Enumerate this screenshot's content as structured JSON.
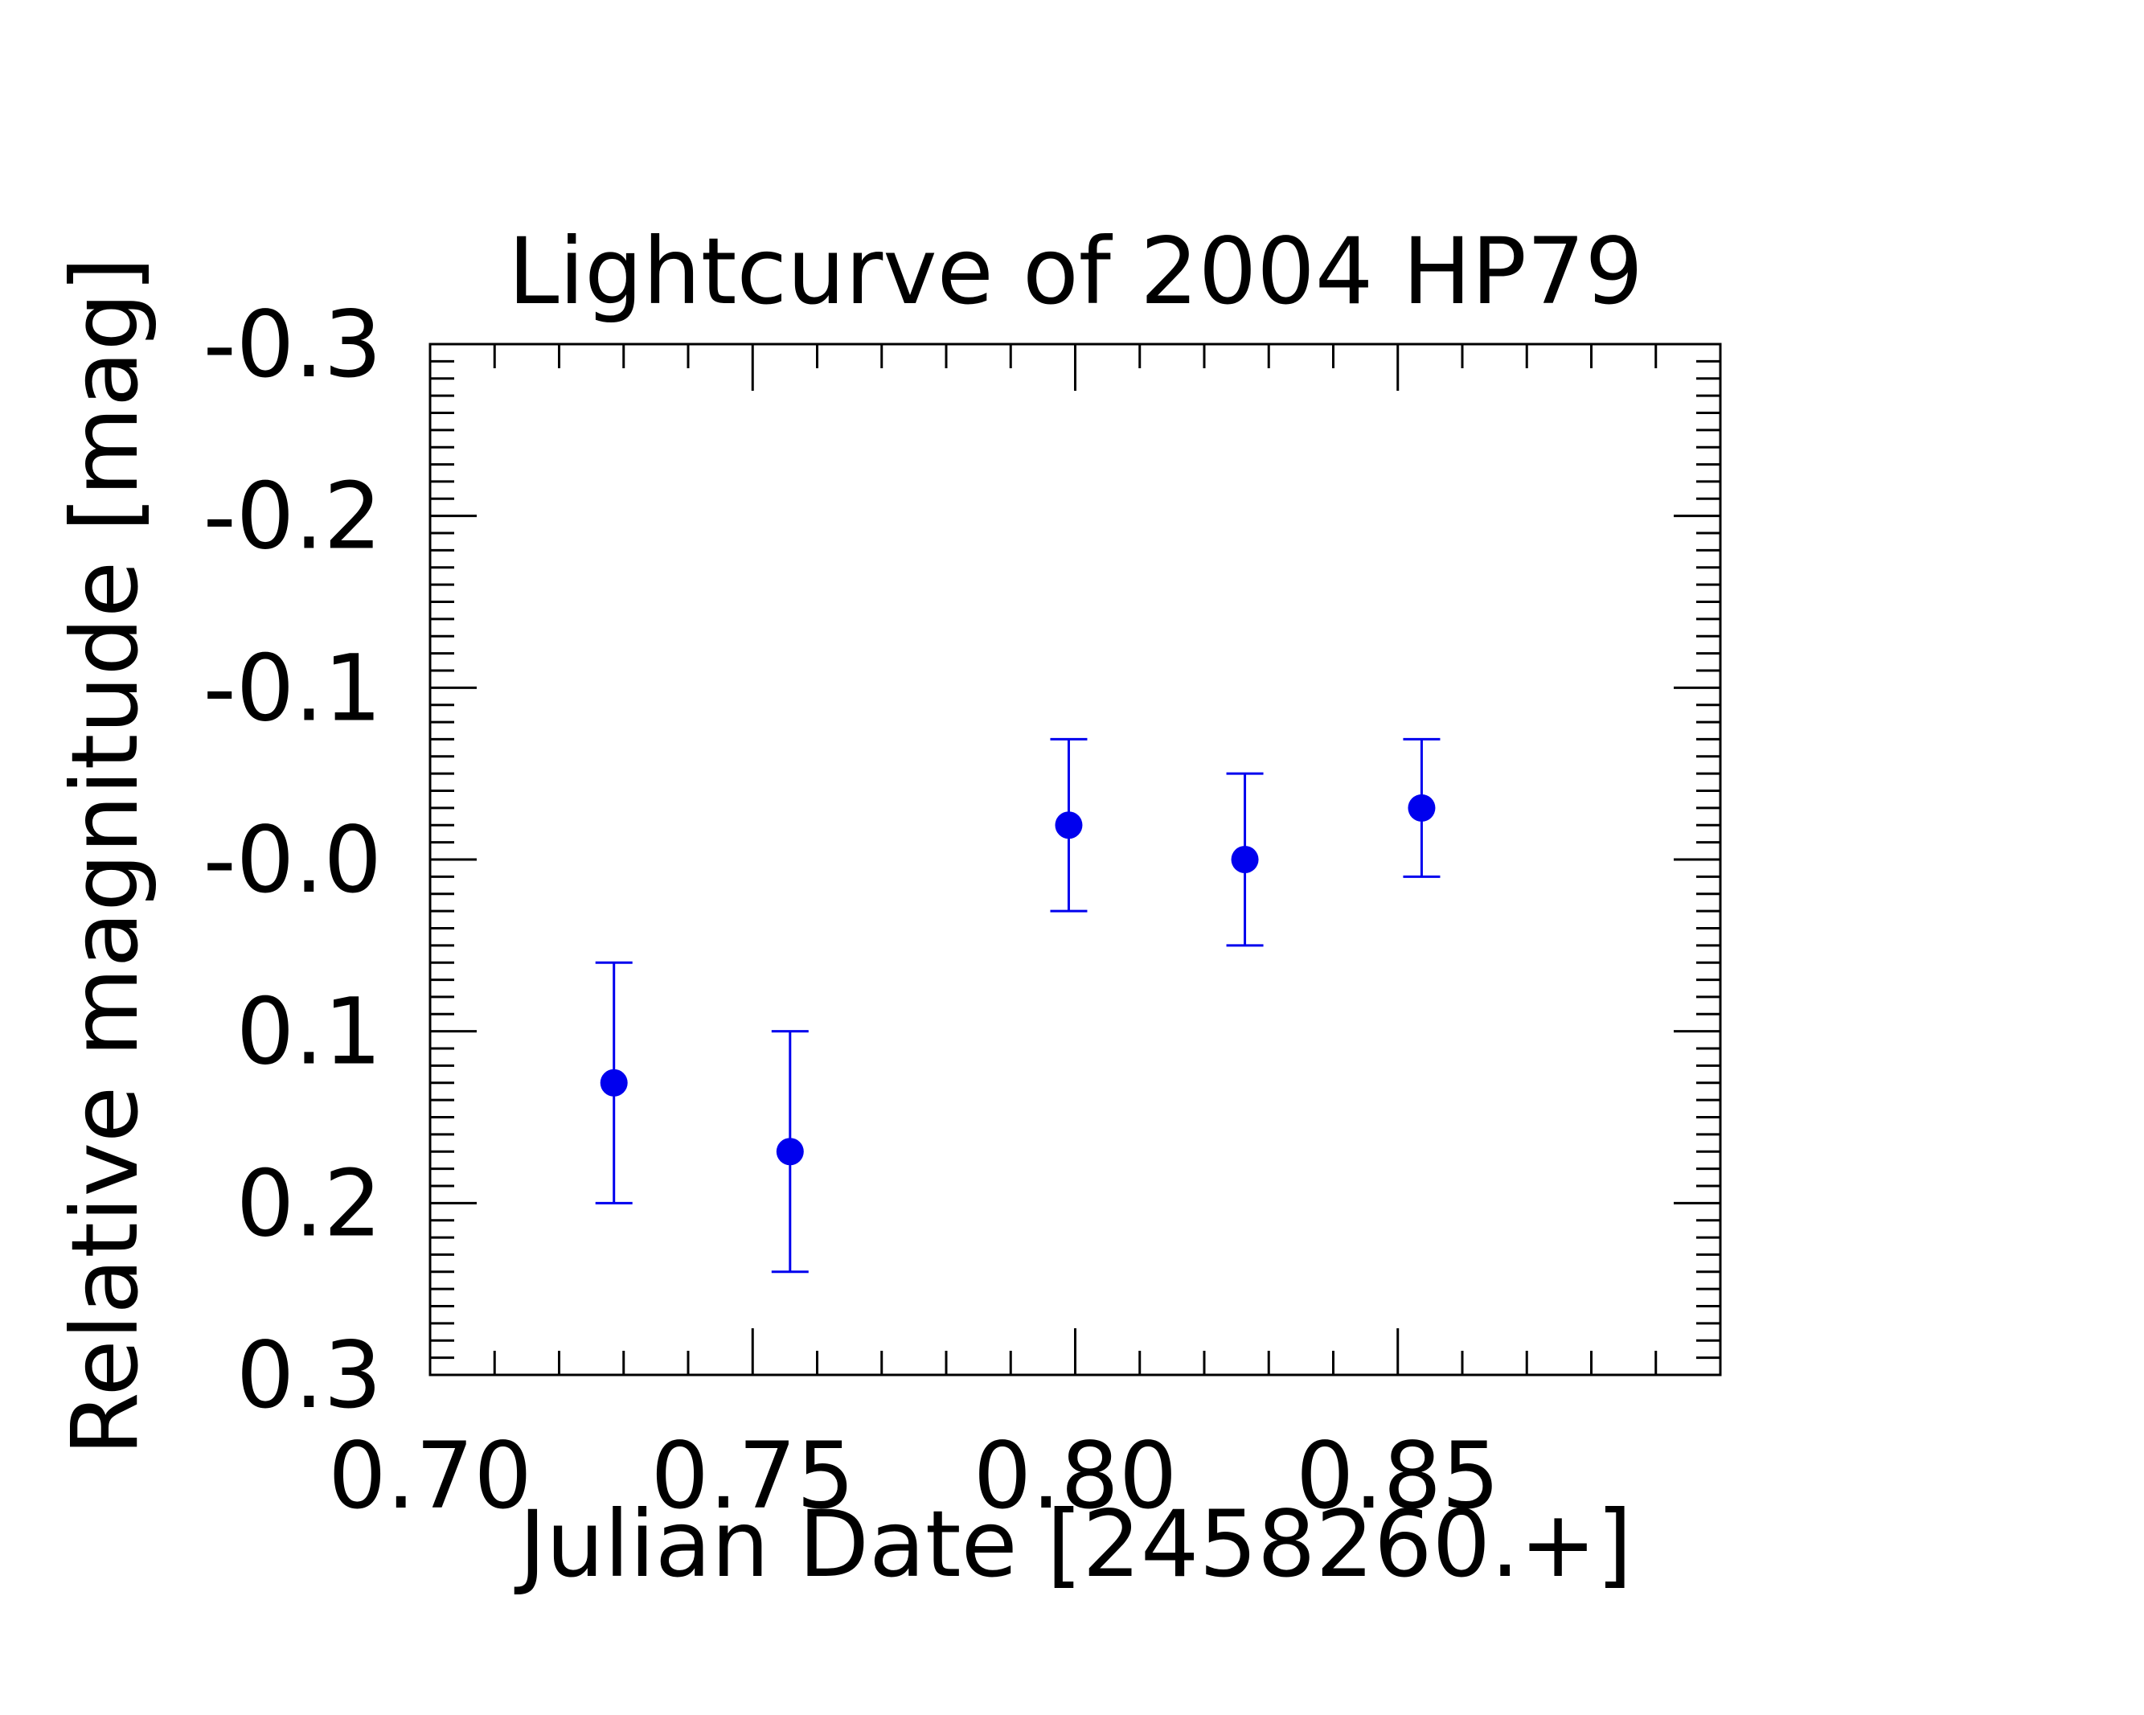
{
  "chart_data": {
    "type": "scatter",
    "title": "Lightcurve of 2004 HP79",
    "xlabel": "Julian Date [2458260.+]",
    "ylabel": "Relative magnitude [mag]",
    "xlim": [
      0.7,
      0.9
    ],
    "ylim": [
      0.3,
      -0.3
    ],
    "y_inverted": true,
    "grid": false,
    "x_ticks": [
      0.7,
      0.75,
      0.8,
      0.85
    ],
    "x_tick_labels": [
      "0.70",
      "0.75",
      "0.80",
      "0.85"
    ],
    "x_minor_step": 0.01,
    "y_ticks": [
      -0.3,
      -0.2,
      -0.1,
      0.0,
      0.1,
      0.2,
      0.3
    ],
    "y_tick_labels": [
      "-0.3",
      "-0.2",
      "-0.1",
      "-0.0",
      "0.1",
      "0.2",
      "0.3"
    ],
    "y_minor_step": 0.01,
    "series": [
      {
        "color": "#0000ee",
        "marker": "circle",
        "errorbars": true,
        "points": [
          {
            "x": 0.7285,
            "y": 0.13,
            "yerr": 0.07
          },
          {
            "x": 0.7558,
            "y": 0.17,
            "yerr": 0.07
          },
          {
            "x": 0.799,
            "y": -0.02,
            "yerr": 0.05
          },
          {
            "x": 0.8263,
            "y": 0.0,
            "yerr": 0.05
          },
          {
            "x": 0.8537,
            "y": -0.03,
            "yerr": 0.04
          }
        ]
      }
    ]
  }
}
